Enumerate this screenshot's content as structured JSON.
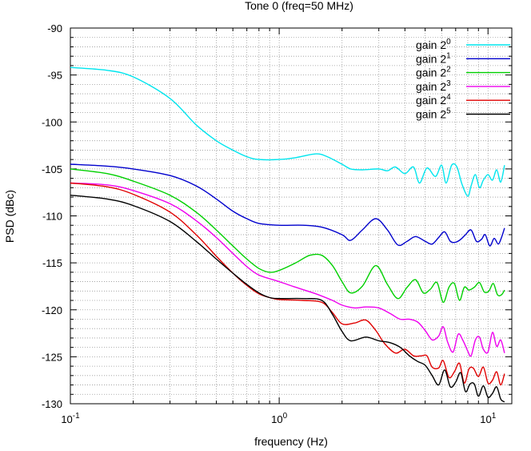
{
  "chart_data": {
    "type": "line",
    "title": "Tone 0 (freq=50 MHz)",
    "xlabel": "frequency (Hz)",
    "ylabel": "PSD (dBc)",
    "xscale": "log",
    "xlim": [
      0.1,
      13
    ],
    "ylim": [
      -130,
      -90
    ],
    "grid": true,
    "legend_position": "top-right",
    "x_ticks": [
      {
        "base": "10",
        "exp": "-1",
        "value": 0.1
      },
      {
        "base": "10",
        "exp": "0",
        "value": 1
      },
      {
        "base": "10",
        "exp": "1",
        "value": 10
      }
    ],
    "y_ticks": [
      "-90",
      "-95",
      "-100",
      "-105",
      "-110",
      "-115",
      "-120",
      "-125",
      "-130"
    ],
    "series": [
      {
        "name": "gain 2",
        "sup": "0",
        "color": "#00e5ee",
        "points": [
          [
            0.1,
            -94.2
          ],
          [
            0.15,
            -94.5
          ],
          [
            0.2,
            -95.2
          ],
          [
            0.3,
            -97.5
          ],
          [
            0.4,
            -100.3
          ],
          [
            0.5,
            -102
          ],
          [
            0.6,
            -103
          ],
          [
            0.7,
            -103.7
          ],
          [
            0.8,
            -104
          ],
          [
            1.0,
            -104
          ],
          [
            1.2,
            -103.8
          ],
          [
            1.5,
            -103.4
          ],
          [
            1.7,
            -103.7
          ],
          [
            2.0,
            -104.5
          ],
          [
            2.2,
            -105
          ],
          [
            2.5,
            -105.1
          ],
          [
            3.0,
            -105
          ],
          [
            3.3,
            -105.2
          ],
          [
            3.6,
            -104.8
          ],
          [
            4.0,
            -105.5
          ],
          [
            4.4,
            -104.8
          ],
          [
            4.7,
            -106.5
          ],
          [
            5.1,
            -104.9
          ],
          [
            5.6,
            -105.8
          ],
          [
            6.0,
            -104.6
          ],
          [
            6.3,
            -106.5
          ],
          [
            6.7,
            -104.6
          ],
          [
            7.1,
            -104.8
          ],
          [
            7.5,
            -106.6
          ],
          [
            8.0,
            -107.9
          ],
          [
            8.3,
            -106.8
          ],
          [
            8.7,
            -105.6
          ],
          [
            9.1,
            -107
          ],
          [
            9.5,
            -106.2
          ],
          [
            10.0,
            -105.6
          ],
          [
            10.5,
            -106.2
          ],
          [
            11.0,
            -105.1
          ],
          [
            11.5,
            -106.4
          ],
          [
            12.0,
            -104.6
          ]
        ]
      },
      {
        "name": "gain 2",
        "sup": "1",
        "color": "#0000cd",
        "points": [
          [
            0.1,
            -104.5
          ],
          [
            0.15,
            -104.7
          ],
          [
            0.2,
            -105
          ],
          [
            0.3,
            -105.7
          ],
          [
            0.4,
            -106.8
          ],
          [
            0.5,
            -108.2
          ],
          [
            0.6,
            -109.5
          ],
          [
            0.7,
            -110.3
          ],
          [
            0.8,
            -110.8
          ],
          [
            1.0,
            -111
          ],
          [
            1.3,
            -111
          ],
          [
            1.6,
            -111.2
          ],
          [
            2.0,
            -112
          ],
          [
            2.2,
            -112.6
          ],
          [
            2.5,
            -111.5
          ],
          [
            2.9,
            -110.3
          ],
          [
            3.3,
            -111.5
          ],
          [
            3.7,
            -113.1
          ],
          [
            4.1,
            -112.7
          ],
          [
            4.5,
            -112.2
          ],
          [
            5.0,
            -112.7
          ],
          [
            5.4,
            -113
          ],
          [
            5.8,
            -112.3
          ],
          [
            6.2,
            -111.7
          ],
          [
            6.6,
            -112.7
          ],
          [
            7.0,
            -112.8
          ],
          [
            7.4,
            -112.5
          ],
          [
            7.8,
            -112
          ],
          [
            8.3,
            -111.5
          ],
          [
            8.8,
            -112.7
          ],
          [
            9.3,
            -112.5
          ],
          [
            9.7,
            -112
          ],
          [
            10.2,
            -113.2
          ],
          [
            10.7,
            -112.4
          ],
          [
            11.2,
            -113
          ],
          [
            11.6,
            -112.3
          ],
          [
            12.0,
            -111.3
          ]
        ]
      },
      {
        "name": "gain 2",
        "sup": "2",
        "color": "#00d000",
        "points": [
          [
            0.1,
            -105
          ],
          [
            0.15,
            -105.5
          ],
          [
            0.2,
            -106.3
          ],
          [
            0.3,
            -107.8
          ],
          [
            0.4,
            -109.6
          ],
          [
            0.5,
            -111.5
          ],
          [
            0.6,
            -113.2
          ],
          [
            0.7,
            -114.6
          ],
          [
            0.8,
            -115.6
          ],
          [
            0.9,
            -116
          ],
          [
            1.0,
            -115.8
          ],
          [
            1.2,
            -115
          ],
          [
            1.4,
            -114.2
          ],
          [
            1.6,
            -114.2
          ],
          [
            1.8,
            -115.3
          ],
          [
            2.0,
            -117
          ],
          [
            2.2,
            -118.2
          ],
          [
            2.5,
            -117.5
          ],
          [
            2.9,
            -115.3
          ],
          [
            3.3,
            -117.3
          ],
          [
            3.7,
            -118.8
          ],
          [
            4.1,
            -117.6
          ],
          [
            4.5,
            -116.8
          ],
          [
            4.9,
            -118.2
          ],
          [
            5.3,
            -117.8
          ],
          [
            5.7,
            -117.1
          ],
          [
            6.1,
            -119.2
          ],
          [
            6.5,
            -117.6
          ],
          [
            6.9,
            -117.2
          ],
          [
            7.3,
            -119
          ],
          [
            7.7,
            -117.6
          ],
          [
            8.1,
            -117.9
          ],
          [
            8.6,
            -117.6
          ],
          [
            9.1,
            -117.1
          ],
          [
            9.6,
            -118.1
          ],
          [
            10.1,
            -118
          ],
          [
            10.6,
            -117.2
          ],
          [
            11.1,
            -118.4
          ],
          [
            11.6,
            -118.4
          ],
          [
            12.0,
            -117.9
          ]
        ]
      },
      {
        "name": "gain 2",
        "sup": "3",
        "color": "#ee00ee",
        "points": [
          [
            0.1,
            -106.5
          ],
          [
            0.15,
            -106.7
          ],
          [
            0.2,
            -107.3
          ],
          [
            0.3,
            -108.7
          ],
          [
            0.4,
            -110.5
          ],
          [
            0.5,
            -112.3
          ],
          [
            0.6,
            -114
          ],
          [
            0.7,
            -115.4
          ],
          [
            0.8,
            -116.3
          ],
          [
            1.0,
            -117
          ],
          [
            1.2,
            -117.6
          ],
          [
            1.5,
            -118.3
          ],
          [
            1.8,
            -119
          ],
          [
            2.0,
            -119.5
          ],
          [
            2.3,
            -119.8
          ],
          [
            2.6,
            -119.7
          ],
          [
            3.0,
            -119.8
          ],
          [
            3.4,
            -120.4
          ],
          [
            3.8,
            -121
          ],
          [
            4.2,
            -121
          ],
          [
            4.6,
            -121.3
          ],
          [
            5.0,
            -122.2
          ],
          [
            5.4,
            -123.2
          ],
          [
            5.8,
            -122.8
          ],
          [
            6.1,
            -121.8
          ],
          [
            6.4,
            -123.4
          ],
          [
            6.8,
            -124.5
          ],
          [
            7.2,
            -122.6
          ],
          [
            7.6,
            -123.3
          ],
          [
            8.0,
            -124.4
          ],
          [
            8.3,
            -124.9
          ],
          [
            8.7,
            -123.2
          ],
          [
            9.1,
            -122.9
          ],
          [
            9.5,
            -124.2
          ],
          [
            10.0,
            -124.5
          ],
          [
            10.5,
            -122.4
          ],
          [
            11.0,
            -123.9
          ],
          [
            11.5,
            -123.2
          ],
          [
            12.0,
            -124.6
          ]
        ]
      },
      {
        "name": "gain 2",
        "sup": "4",
        "color": "#e00000",
        "points": [
          [
            0.1,
            -106.5
          ],
          [
            0.15,
            -106.9
          ],
          [
            0.2,
            -107.7
          ],
          [
            0.3,
            -109.6
          ],
          [
            0.4,
            -112
          ],
          [
            0.5,
            -114.3
          ],
          [
            0.6,
            -116.1
          ],
          [
            0.7,
            -117.4
          ],
          [
            0.8,
            -118.3
          ],
          [
            0.9,
            -118.7
          ],
          [
            1.0,
            -118.9
          ],
          [
            1.3,
            -119
          ],
          [
            1.6,
            -119.2
          ],
          [
            1.8,
            -120.3
          ],
          [
            2.0,
            -121.5
          ],
          [
            2.3,
            -121.4
          ],
          [
            2.6,
            -121.1
          ],
          [
            2.9,
            -122.2
          ],
          [
            3.2,
            -123.6
          ],
          [
            3.6,
            -124.6
          ],
          [
            4.0,
            -124.2
          ],
          [
            4.4,
            -124.9
          ],
          [
            4.8,
            -124.9
          ],
          [
            5.1,
            -124.9
          ],
          [
            5.4,
            -126.1
          ],
          [
            5.8,
            -126.2
          ],
          [
            6.1,
            -125.4
          ],
          [
            6.5,
            -127.2
          ],
          [
            6.9,
            -126.6
          ],
          [
            7.3,
            -125.7
          ],
          [
            7.7,
            -127.8
          ],
          [
            8.1,
            -126.3
          ],
          [
            8.5,
            -126.2
          ],
          [
            9.0,
            -127.1
          ],
          [
            9.5,
            -126.1
          ],
          [
            10.0,
            -127.8
          ],
          [
            10.5,
            -127.5
          ],
          [
            11.0,
            -126.6
          ],
          [
            11.5,
            -128
          ],
          [
            12.0,
            -126.8
          ]
        ]
      },
      {
        "name": "gain 2",
        "sup": "5",
        "color": "#000000",
        "points": [
          [
            0.1,
            -107.8
          ],
          [
            0.15,
            -108.2
          ],
          [
            0.2,
            -108.9
          ],
          [
            0.3,
            -110.6
          ],
          [
            0.4,
            -112.7
          ],
          [
            0.5,
            -114.6
          ],
          [
            0.6,
            -116.1
          ],
          [
            0.7,
            -117.3
          ],
          [
            0.8,
            -118.2
          ],
          [
            0.9,
            -118.7
          ],
          [
            1.0,
            -118.8
          ],
          [
            1.3,
            -118.8
          ],
          [
            1.6,
            -119
          ],
          [
            1.8,
            -120.5
          ],
          [
            2.0,
            -122.3
          ],
          [
            2.2,
            -123.3
          ],
          [
            2.6,
            -122.9
          ],
          [
            3.0,
            -123.3
          ],
          [
            3.4,
            -123.5
          ],
          [
            3.8,
            -124
          ],
          [
            4.2,
            -124.9
          ],
          [
            4.6,
            -125.5
          ],
          [
            5.0,
            -125.9
          ],
          [
            5.4,
            -127
          ],
          [
            5.8,
            -128
          ],
          [
            6.2,
            -126.4
          ],
          [
            6.6,
            -128.2
          ],
          [
            7.0,
            -127.7
          ],
          [
            7.4,
            -126.7
          ],
          [
            7.8,
            -128.7
          ],
          [
            8.2,
            -127.9
          ],
          [
            8.6,
            -127.9
          ],
          [
            9.0,
            -129.2
          ],
          [
            9.5,
            -128.1
          ],
          [
            10.0,
            -129.3
          ],
          [
            10.5,
            -128.9
          ],
          [
            11.0,
            -128.2
          ],
          [
            11.5,
            -129.5
          ],
          [
            12.0,
            -129.8
          ]
        ]
      }
    ]
  }
}
